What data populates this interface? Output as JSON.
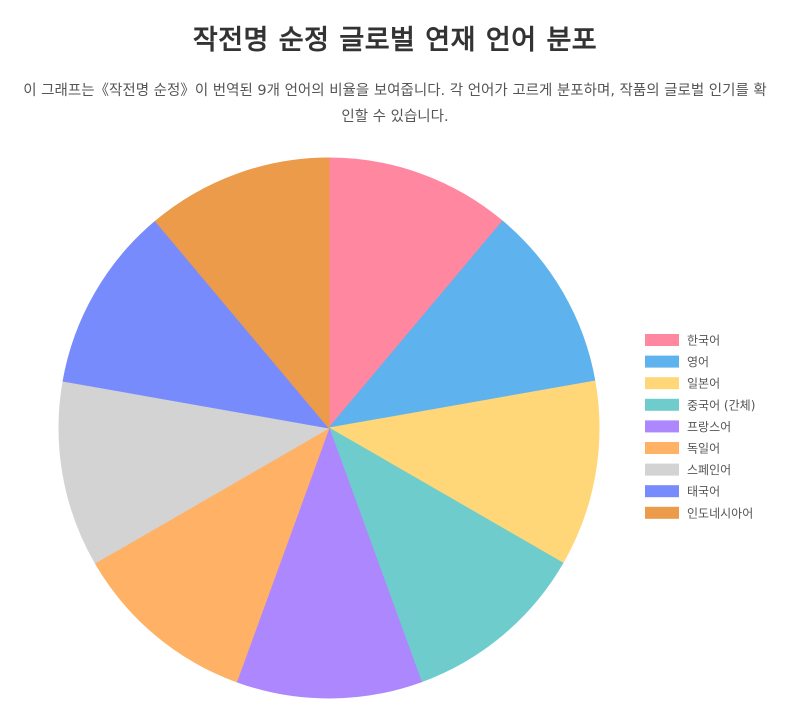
{
  "header": {
    "title": "작전명 순정 글로벌 연재 언어 분포",
    "subtitle": "이 그래프는《작전명 순정》이 번역된 9개 언어의 비율을 보여줍니다. 각 언어가 고르게 분포하며, 작품의 글로벌 인기를 확인할 수 있습니다."
  },
  "chart_data": {
    "type": "pie",
    "title": "작전명 순정 글로벌 연재 언어 분포",
    "legend_position": "right",
    "categories": [
      "한국어",
      "영어",
      "일본어",
      "중국어 (간체)",
      "프랑스어",
      "독일어",
      "스페인어",
      "태국어",
      "인도네시아어"
    ],
    "values": [
      1,
      1,
      1,
      1,
      1,
      1,
      1,
      1,
      1
    ],
    "colors": [
      "#ff879f",
      "#5eb3ee",
      "#ffd678",
      "#6ecdcc",
      "#ad87fe",
      "#ffb266",
      "#d3d3d3",
      "#788bfc",
      "#eb9b4a"
    ]
  }
}
